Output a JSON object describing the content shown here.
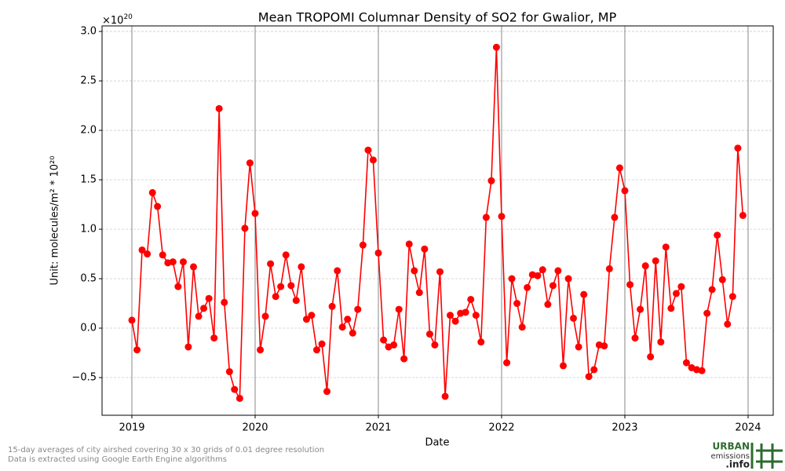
{
  "chart_data": {
    "type": "line",
    "title": "Mean TROPOMI Columnar Density of SO2 for Gwalior, MP",
    "xlabel": "Date",
    "ylabel": "Unit: molecules/m² * 10²⁰",
    "y_offset": {
      "base": "×10",
      "exponent": "20"
    },
    "x": [
      2019,
      2019.042,
      2019.083,
      2019.125,
      2019.167,
      2019.208,
      2019.25,
      2019.292,
      2019.333,
      2019.375,
      2019.417,
      2019.458,
      2019.5,
      2019.542,
      2019.583,
      2019.625,
      2019.667,
      2019.708,
      2019.75,
      2019.792,
      2019.833,
      2019.875,
      2019.917,
      2019.958,
      2020,
      2020.042,
      2020.083,
      2020.125,
      2020.167,
      2020.208,
      2020.25,
      2020.292,
      2020.333,
      2020.375,
      2020.417,
      2020.458,
      2020.5,
      2020.542,
      2020.583,
      2020.625,
      2020.667,
      2020.708,
      2020.75,
      2020.792,
      2020.833,
      2020.875,
      2020.917,
      2020.958,
      2021,
      2021.042,
      2021.083,
      2021.125,
      2021.167,
      2021.208,
      2021.25,
      2021.292,
      2021.333,
      2021.375,
      2021.417,
      2021.458,
      2021.5,
      2021.542,
      2021.583,
      2021.625,
      2021.667,
      2021.708,
      2021.75,
      2021.792,
      2021.833,
      2021.875,
      2021.917,
      2021.958,
      2022,
      2022.042,
      2022.083,
      2022.125,
      2022.167,
      2022.208,
      2022.25,
      2022.292,
      2022.333,
      2022.375,
      2022.417,
      2022.458,
      2022.5,
      2022.542,
      2022.583,
      2022.625,
      2022.667,
      2022.708,
      2022.75,
      2022.792,
      2022.833,
      2022.875,
      2022.917,
      2022.958,
      2023,
      2023.042,
      2023.083,
      2023.125,
      2023.167,
      2023.208,
      2023.25,
      2023.292,
      2023.333,
      2023.375,
      2023.417,
      2023.458,
      2023.5,
      2023.542,
      2023.583,
      2023.625,
      2023.667,
      2023.708,
      2023.75,
      2023.792,
      2023.833,
      2023.875,
      2023.917,
      2023.958
    ],
    "series": [
      {
        "color": "#ff0000",
        "values": [
          0.08,
          -0.22,
          0.79,
          0.75,
          1.37,
          1.23,
          0.74,
          0.66,
          0.67,
          0.42,
          0.67,
          -0.19,
          0.62,
          0.12,
          0.2,
          0.3,
          -0.1,
          2.22,
          0.26,
          -0.44,
          -0.62,
          -0.71,
          1.01,
          1.67,
          1.16,
          -0.22,
          0.12,
          0.65,
          0.32,
          0.42,
          0.74,
          0.43,
          0.28,
          0.62,
          0.09,
          0.13,
          -0.22,
          -0.16,
          -0.64,
          0.22,
          0.58,
          0.01,
          0.09,
          -0.05,
          0.19,
          0.84,
          1.8,
          1.7,
          0.76,
          -0.12,
          -0.19,
          -0.17,
          0.19,
          -0.31,
          0.85,
          0.58,
          0.36,
          0.8,
          -0.06,
          -0.17,
          0.57,
          -0.69,
          0.13,
          0.07,
          0.15,
          0.16,
          0.29,
          0.13,
          -0.14,
          1.12,
          1.49,
          2.84,
          1.13,
          -0.35,
          0.5,
          0.25,
          0.01,
          0.41,
          0.54,
          0.53,
          0.59,
          0.24,
          0.43,
          0.58,
          -0.38,
          0.5,
          0.1,
          -0.19,
          0.34,
          -0.49,
          -0.42,
          -0.17,
          -0.18,
          0.6,
          1.12,
          1.62,
          1.39,
          0.44,
          -0.1,
          0.19,
          0.63,
          -0.29,
          0.68,
          -0.14,
          0.82,
          0.2,
          0.35,
          0.42,
          -0.35,
          -0.4,
          -0.42,
          -0.43,
          0.15,
          0.39,
          0.94,
          0.49,
          0.04,
          0.32,
          1.82,
          1.14
        ]
      }
    ],
    "xlim": [
      2018.758,
      2024.204
    ],
    "xticks": [
      2019,
      2020,
      2021,
      2022,
      2023,
      2024
    ],
    "ylim": [
      -0.881,
      3.056
    ],
    "yticks": [
      {
        "value": -0.5,
        "label": "−0.5"
      },
      {
        "value": 0,
        "label": "0.0"
      },
      {
        "value": 0.5,
        "label": "0.5"
      },
      {
        "value": 1,
        "label": "1.0"
      },
      {
        "value": 1.5,
        "label": "1.5"
      },
      {
        "value": 2,
        "label": "2.0"
      },
      {
        "value": 2.5,
        "label": "2.5"
      },
      {
        "value": 3,
        "label": "3.0"
      }
    ],
    "grid": true
  },
  "footer": {
    "notes": [
      "15-day averages of city airshed covering 30 x 30 grids of 0.01 degree resolution",
      "Data is extracted using Google Earth Engine algorithms"
    ],
    "logo": [
      "URBAN",
      "emissions",
      ".info"
    ]
  }
}
